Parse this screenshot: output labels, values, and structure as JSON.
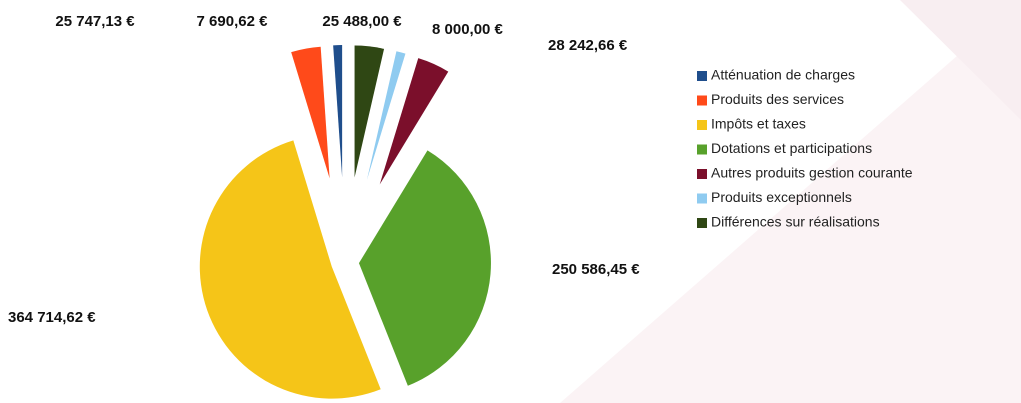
{
  "chart_data": {
    "type": "pie",
    "categories": [
      "Atténuation de charges",
      "Produits des services",
      "Impôts et taxes",
      "Dotations et participations",
      "Autres produits gestion courante",
      "Produits exceptionnels",
      "Différences sur réalisations"
    ],
    "values": [
      7690.62,
      25747.13,
      364714.62,
      250586.45,
      28242.66,
      8000.0,
      25488.0
    ],
    "value_labels": [
      "7 690,62 €",
      "25 747,13 €",
      "364 714,62 €",
      "250 586,45 €",
      "28 242,66 €",
      "8 000,00 €",
      "25 488,00 €"
    ],
    "colors": [
      "#1f4e8c",
      "#ff4a1a",
      "#f5c518",
      "#58a12b",
      "#7b0f2b",
      "#8fcbf0",
      "#2f4714"
    ]
  }
}
